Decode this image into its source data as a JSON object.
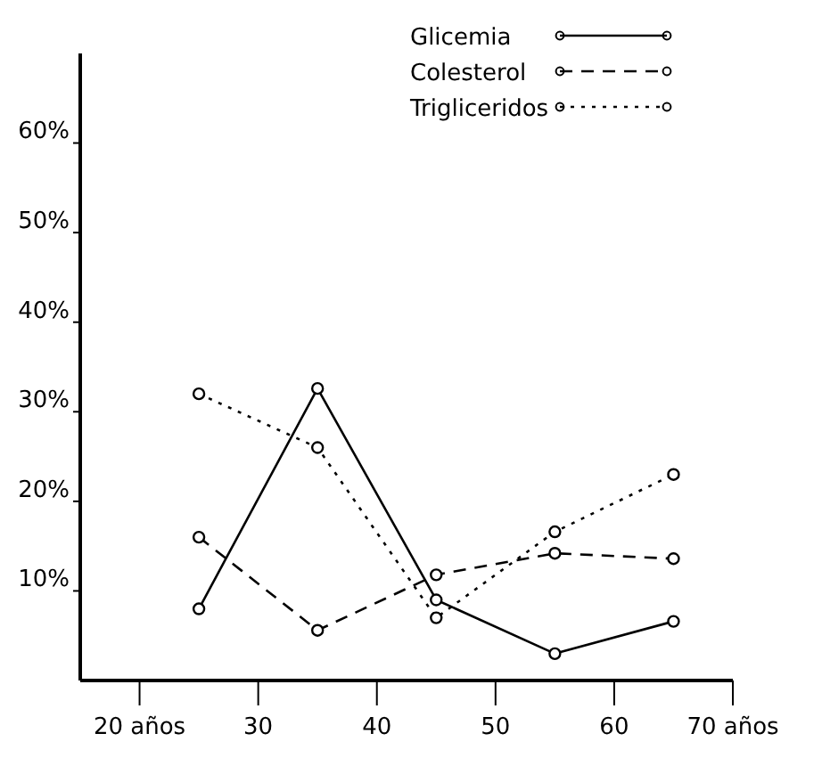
{
  "chart_data": {
    "type": "line",
    "x": [
      25,
      35,
      45,
      55,
      65
    ],
    "series": [
      {
        "name": "Glicemia",
        "color": "#000000",
        "line_style": "solid",
        "values": [
          8,
          32.6,
          9,
          3,
          6.6
        ]
      },
      {
        "name": "Colesterol",
        "color": "#000000",
        "line_style": "dashed",
        "values": [
          16,
          5.6,
          11.8,
          14.2,
          13.6
        ]
      },
      {
        "name": "Trigliceridos",
        "color": "#000000",
        "line_style": "dotted",
        "values": [
          32,
          26,
          7,
          16.6,
          23
        ]
      }
    ],
    "xlim": [
      15,
      70
    ],
    "xticks": [
      {
        "value": 20,
        "label": "20 años"
      },
      30,
      40,
      50,
      60,
      {
        "value": 70,
        "label": "70 años"
      }
    ],
    "ylim": [
      0,
      70
    ],
    "yticks": [
      {
        "value": 10,
        "label": "10%"
      },
      {
        "value": 20,
        "label": "20%"
      },
      {
        "value": 30,
        "label": "30%"
      },
      {
        "value": 40,
        "label": "40%"
      },
      {
        "value": 50,
        "label": "50%"
      },
      {
        "value": 60,
        "label": "60%"
      }
    ],
    "marker": "circle",
    "legend": "top right",
    "grid": false
  }
}
